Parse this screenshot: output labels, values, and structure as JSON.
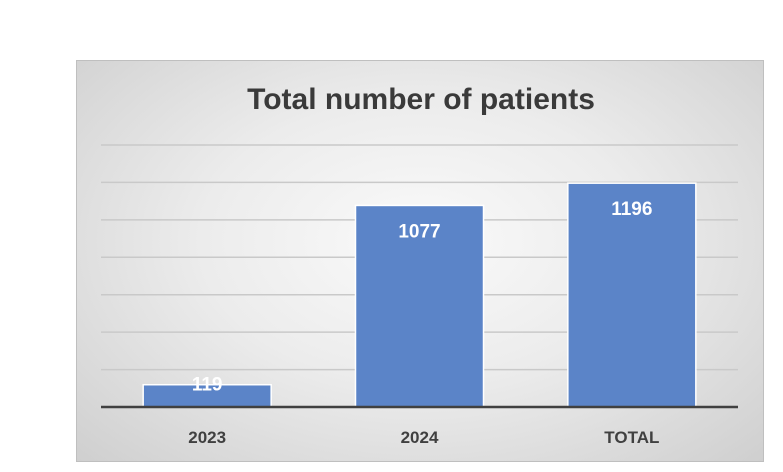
{
  "chart_data": {
    "type": "bar",
    "title": "Total number of patients",
    "categories": [
      "2023",
      "2024",
      "TOTAL"
    ],
    "values": [
      119,
      1077,
      1196
    ],
    "ylim": [
      0,
      1400
    ],
    "grid": true,
    "legend": "none",
    "bar_color": "#5b84c8",
    "data_label_color": "#ffffff",
    "tick_label_color": "#404040"
  }
}
